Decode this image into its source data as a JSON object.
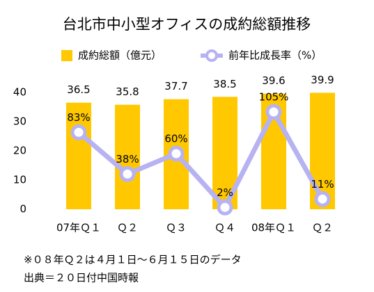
{
  "chart_data": {
    "type": "bar-line",
    "title": "台北市中小型オフィスの成約総額推移",
    "categories": [
      "07年Ｑ１",
      "Ｑ２",
      "Ｑ３",
      "Ｑ４",
      "08年Ｑ１",
      "Ｑ２"
    ],
    "series": [
      {
        "name": "成約総額（億元）",
        "type": "bar",
        "color": "#FFC800",
        "values": [
          36.5,
          35.8,
          37.7,
          38.5,
          39.6,
          39.9
        ]
      },
      {
        "name": "前年比成長率（%）",
        "type": "line",
        "axis": "y2",
        "color": "#B7B2F2",
        "values": [
          83,
          38,
          60,
          2,
          105,
          11
        ],
        "value_labels": [
          "83%",
          "38%",
          "60%",
          "2%",
          "105%",
          "11%"
        ]
      }
    ],
    "ylim": [
      0,
      40
    ],
    "yticks": [
      0,
      10,
      20,
      30,
      40
    ],
    "y2lim": [
      0,
      126
    ],
    "grid": false,
    "notes": [
      "※０８年Ｑ２は４月１日〜６月１５日のデータ",
      "出典＝２０日付中国時報"
    ]
  }
}
